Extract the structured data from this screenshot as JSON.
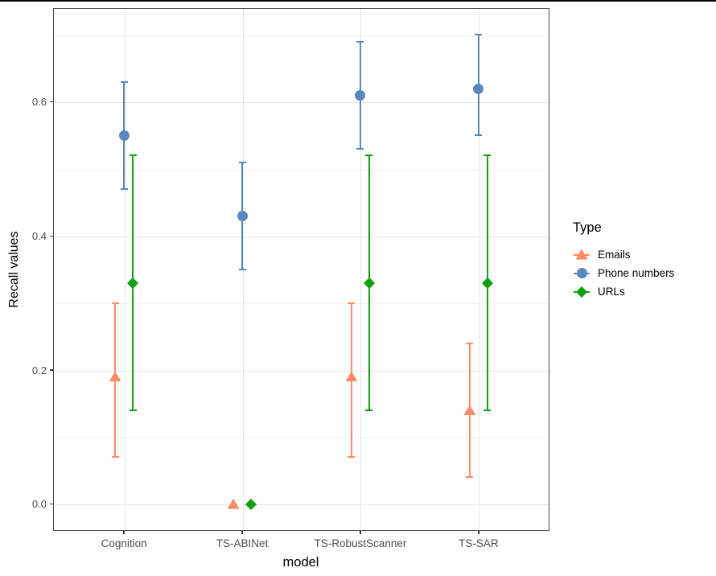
{
  "page": {
    "top_edge_line_color": "#000000",
    "background": "#ffffff"
  },
  "chart_data": {
    "type": "pointrange",
    "title": "",
    "xlabel": "model",
    "ylabel": "Recall values",
    "legend_title": "Type",
    "legend_position": "right",
    "grid": true,
    "categories": [
      "Cognition",
      "TS-ABINet",
      "TS-RobustScanner",
      "TS-SAR"
    ],
    "series": [
      {
        "name": "Emails",
        "marker": "triangle",
        "color": "#FB8A65",
        "values": [
          0.19,
          0.0,
          0.19,
          0.14
        ],
        "ci_low": [
          0.07,
          null,
          0.07,
          0.04
        ],
        "ci_high": [
          0.3,
          null,
          0.3,
          0.24
        ]
      },
      {
        "name": "Phone numbers",
        "marker": "circle",
        "color": "#5789BE",
        "values": [
          0.55,
          0.43,
          0.61,
          0.62
        ],
        "ci_low": [
          0.47,
          0.35,
          0.53,
          0.55
        ],
        "ci_high": [
          0.63,
          0.51,
          0.69,
          0.7
        ]
      },
      {
        "name": "URLs",
        "marker": "diamond",
        "color": "#12A012",
        "values": [
          0.33,
          0.0,
          0.33,
          0.33
        ],
        "ci_low": [
          0.14,
          null,
          0.14,
          0.14
        ],
        "ci_high": [
          0.52,
          null,
          0.52,
          0.52
        ]
      }
    ],
    "yticks": [
      0.0,
      0.2,
      0.4,
      0.6
    ],
    "ytick_labels": [
      "0.0",
      "0.2",
      "0.4",
      "0.6"
    ],
    "yticks_minor": [
      0.1,
      0.3,
      0.5,
      0.7
    ],
    "ylim": [
      -0.04,
      0.74
    ]
  }
}
